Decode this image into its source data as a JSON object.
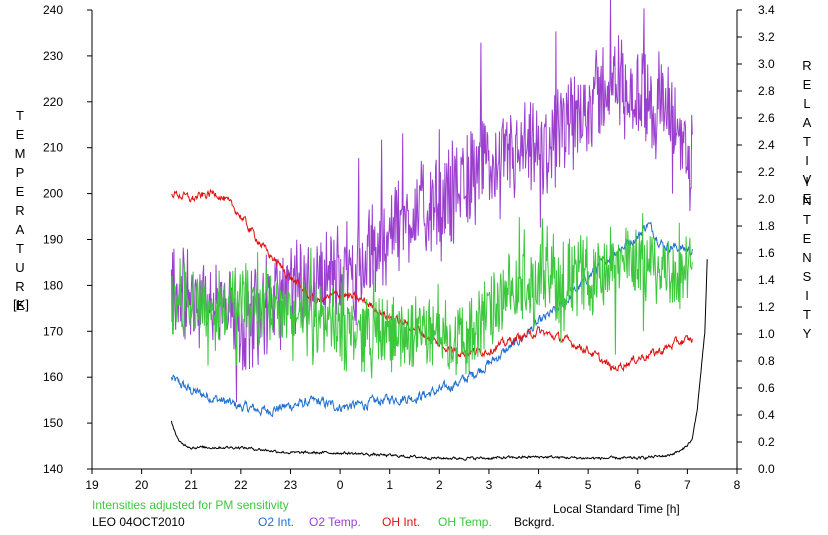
{
  "chart_data": {
    "type": "line",
    "xlabel": "Local Standard Time [h]",
    "x_ticks": [
      "19",
      "20",
      "21",
      "22",
      "23",
      "0",
      "1",
      "2",
      "3",
      "4",
      "5",
      "6",
      "7",
      "8"
    ],
    "x_range": [
      19,
      32
    ],
    "y_left": {
      "label_letters": [
        "T",
        "E",
        "M",
        "P",
        "E",
        "R",
        "A",
        "T",
        "U",
        "R",
        "E"
      ],
      "unit": "[K]",
      "range": [
        140,
        240
      ],
      "ticks": [
        "140",
        "150",
        "160",
        "170",
        "180",
        "190",
        "200",
        "210",
        "220",
        "230",
        "240"
      ]
    },
    "y_right": {
      "label_top_letters": [
        "R",
        "E",
        "L",
        "A",
        "T",
        "I",
        "V",
        "E"
      ],
      "label_bottom_letters": [
        "I",
        "N",
        "T",
        "E",
        "N",
        "S",
        "I",
        "T",
        "Y"
      ],
      "range": [
        0.0,
        3.4
      ],
      "ticks": [
        "0.0",
        "0.2",
        "0.4",
        "0.6",
        "0.8",
        "1.0",
        "1.2",
        "1.4",
        "1.6",
        "1.8",
        "2.0",
        "2.2",
        "2.4",
        "2.6",
        "2.8",
        "3.0",
        "3.2",
        "3.4"
      ]
    },
    "note": "Intensities adjusted for PM sensitivity",
    "station": "LEO 04OCT2010",
    "series": [
      {
        "name": "O2 Int.",
        "axis": "right",
        "color": "#1e6fd0",
        "noise": 0.03,
        "x": [
          20.6,
          21.0,
          21.5,
          22.0,
          22.5,
          23.0,
          23.5,
          24.0,
          24.5,
          25.0,
          25.5,
          26.0,
          26.5,
          27.0,
          27.5,
          28.0,
          28.5,
          29.0,
          29.5,
          30.0,
          30.2,
          30.5,
          31.1
        ],
        "y": [
          0.67,
          0.58,
          0.52,
          0.46,
          0.43,
          0.47,
          0.5,
          0.46,
          0.48,
          0.52,
          0.53,
          0.58,
          0.66,
          0.78,
          0.92,
          1.08,
          1.22,
          1.42,
          1.6,
          1.72,
          1.82,
          1.66,
          1.62
        ]
      },
      {
        "name": "O2 Temp.",
        "axis": "left",
        "color": "#9b3fcf",
        "noise": 9,
        "x": [
          20.6,
          21.0,
          21.5,
          22.0,
          22.5,
          23.0,
          23.5,
          24.0,
          24.5,
          25.0,
          25.5,
          26.0,
          26.5,
          27.0,
          27.5,
          28.0,
          28.5,
          29.0,
          29.5,
          30.0,
          30.5,
          30.8,
          31.1
        ],
        "y": [
          176,
          177,
          174,
          172,
          176,
          178,
          182,
          182,
          184,
          192,
          196,
          196,
          204,
          206,
          208,
          208,
          213,
          220,
          224,
          222,
          218,
          214,
          206
        ]
      },
      {
        "name": "OH Int.",
        "axis": "right",
        "color": "#e01010",
        "noise": 0.025,
        "x": [
          20.6,
          21.0,
          21.5,
          21.9,
          22.5,
          23.0,
          23.5,
          24.0,
          24.5,
          25.0,
          25.5,
          26.0,
          26.5,
          27.0,
          27.5,
          28.0,
          28.5,
          29.0,
          29.5,
          30.0,
          30.5,
          30.8,
          31.1
        ],
        "y": [
          2.05,
          2.0,
          2.05,
          1.92,
          1.62,
          1.42,
          1.24,
          1.3,
          1.24,
          1.12,
          1.05,
          0.92,
          0.86,
          0.88,
          0.96,
          1.02,
          0.96,
          0.88,
          0.74,
          0.82,
          0.88,
          0.94,
          0.96
        ]
      },
      {
        "name": "OH Temp.",
        "axis": "left",
        "color": "#3cc83c",
        "noise": 7,
        "x": [
          20.6,
          21.0,
          21.5,
          22.0,
          22.5,
          23.0,
          23.5,
          24.0,
          24.5,
          25.0,
          25.5,
          26.0,
          26.5,
          27.0,
          27.5,
          28.0,
          28.5,
          29.0,
          29.5,
          30.0,
          30.5,
          30.8,
          31.1
        ],
        "y": [
          178,
          177,
          175,
          176,
          175,
          174,
          172,
          171,
          170,
          169,
          170,
          170,
          168,
          174,
          178,
          180,
          182,
          182,
          184,
          186,
          184,
          182,
          182
        ]
      },
      {
        "name": "Bckgrd.",
        "axis": "right",
        "color": "#000000",
        "noise": 0.008,
        "x": [
          20.6,
          20.75,
          21.0,
          22.0,
          23.0,
          24.0,
          25.0,
          26.0,
          27.0,
          28.0,
          29.0,
          30.0,
          30.6,
          30.9,
          31.1,
          31.2,
          31.35,
          31.4
        ],
        "y": [
          0.35,
          0.2,
          0.16,
          0.16,
          0.12,
          0.12,
          0.1,
          0.08,
          0.08,
          0.09,
          0.08,
          0.08,
          0.1,
          0.14,
          0.22,
          0.45,
          1.0,
          1.55
        ]
      }
    ]
  }
}
